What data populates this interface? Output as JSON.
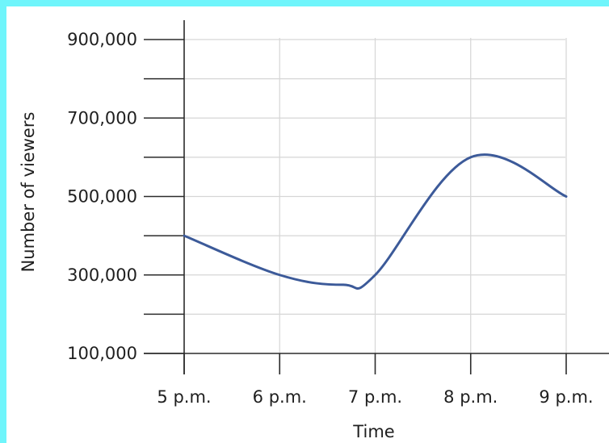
{
  "frame_color": "#6ff5fb",
  "chart_data": {
    "type": "line",
    "title": "",
    "xlabel": "Time",
    "ylabel": "Number of viewers",
    "categories": [
      "5 p.m.",
      "6 p.m.",
      "7 p.m.",
      "8 p.m.",
      "9 p.m."
    ],
    "series": [
      {
        "color": "#3c5a99",
        "points": [
          {
            "x": "5 p.m.",
            "y": 400000
          },
          {
            "x": "6 p.m.",
            "y": 300000
          },
          {
            "x": "6:40 p.m.",
            "y": 275000
          },
          {
            "x": "7 p.m.",
            "y": 300000
          },
          {
            "x": "8 p.m.",
            "y": 600000
          },
          {
            "x": "9 p.m.",
            "y": 500000
          }
        ]
      }
    ],
    "ylim": [
      100000,
      900000
    ],
    "yticks": [
      100000,
      200000,
      300000,
      400000,
      500000,
      600000,
      700000,
      800000,
      900000
    ],
    "ytick_labels": [
      {
        "value": 100000,
        "label": "100,000"
      },
      {
        "value": 300000,
        "label": "300,000"
      },
      {
        "value": 500000,
        "label": "500,000"
      },
      {
        "value": 700000,
        "label": "700,000"
      },
      {
        "value": 900000,
        "label": "900,000"
      }
    ],
    "grid": true
  }
}
